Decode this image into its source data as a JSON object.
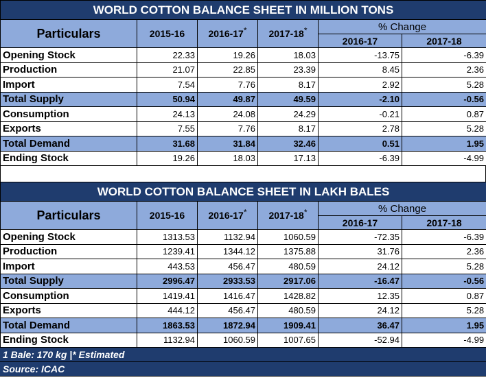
{
  "table1": {
    "title": "WORLD COTTON BALANCE SHEET IN MILLION TONS",
    "header": {
      "particulars": "Particulars",
      "years": [
        "2015-16",
        "2016-17",
        "2017-18"
      ],
      "year_marks": [
        "",
        "*",
        "*"
      ],
      "pct_change": "% Change",
      "pct_years": [
        "2016-17",
        "2017-18"
      ]
    },
    "rows": [
      {
        "label": "Opening Stock",
        "values": [
          "22.33",
          "19.26",
          "18.03",
          "-13.75",
          "-6.39"
        ]
      },
      {
        "label": "Production",
        "values": [
          "21.07",
          "22.85",
          "23.39",
          "8.45",
          "2.36"
        ]
      },
      {
        "label": "Import",
        "values": [
          "7.54",
          "7.76",
          "8.17",
          "2.92",
          "5.28"
        ]
      },
      {
        "label": "Total Supply",
        "values": [
          "50.94",
          "49.87",
          "49.59",
          "-2.10",
          "-0.56"
        ],
        "total": true
      },
      {
        "label": "Consumption",
        "values": [
          "24.13",
          "24.08",
          "24.29",
          "-0.21",
          "0.87"
        ]
      },
      {
        "label": "Exports",
        "values": [
          "7.55",
          "7.76",
          "8.17",
          "2.78",
          "5.28"
        ]
      },
      {
        "label": "Total Demand",
        "values": [
          "31.68",
          "31.84",
          "32.46",
          "0.51",
          "1.95"
        ],
        "total": true
      },
      {
        "label": "Ending Stock",
        "values": [
          "19.26",
          "18.03",
          "17.13",
          "-6.39",
          "-4.99"
        ]
      }
    ]
  },
  "table2": {
    "title": "WORLD COTTON BALANCE SHEET IN LAKH BALES",
    "header": {
      "particulars": "Particulars",
      "years": [
        "2015-16",
        "2016-17",
        "2017-18"
      ],
      "year_marks": [
        "",
        "*",
        "*"
      ],
      "pct_change": "% Change",
      "pct_years": [
        "2016-17",
        "2017-18"
      ]
    },
    "rows": [
      {
        "label": "Opening Stock",
        "values": [
          "1313.53",
          "1132.94",
          "1060.59",
          "-72.35",
          "-6.39"
        ]
      },
      {
        "label": "Production",
        "values": [
          "1239.41",
          "1344.12",
          "1375.88",
          "31.76",
          "2.36"
        ]
      },
      {
        "label": "Import",
        "values": [
          "443.53",
          "456.47",
          "480.59",
          "24.12",
          "5.28"
        ]
      },
      {
        "label": "Total Supply",
        "values": [
          "2996.47",
          "2933.53",
          "2917.06",
          "-16.47",
          "-0.56"
        ],
        "total": true
      },
      {
        "label": "Consumption",
        "values": [
          "1419.41",
          "1416.47",
          "1428.82",
          "12.35",
          "0.87"
        ]
      },
      {
        "label": "Exports",
        "values": [
          "444.12",
          "456.47",
          "480.59",
          "24.12",
          "5.28"
        ]
      },
      {
        "label": "Total Demand",
        "values": [
          "1863.53",
          "1872.94",
          "1909.41",
          "36.47",
          "1.95"
        ],
        "total": true
      },
      {
        "label": "Ending Stock",
        "values": [
          "1132.94",
          "1060.59",
          "1007.65",
          "-52.94",
          "-4.99"
        ]
      }
    ]
  },
  "footer": {
    "note": "1 Bale: 170 kg |* Estimated",
    "source": "Source: ICAC"
  }
}
